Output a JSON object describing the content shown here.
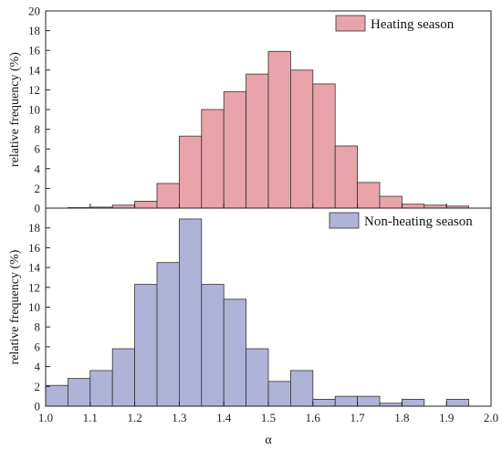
{
  "colors": {
    "heating_fill": "#E8A3AB",
    "nonheating_fill": "#B0B3D8",
    "bar_stroke": "#333333",
    "axis": "#222222"
  },
  "chart_data": {
    "type": "bar",
    "xlabel": "α",
    "xlim": [
      1.0,
      2.0
    ],
    "xticks": [
      "1.0",
      "1.1",
      "1.2",
      "1.3",
      "1.4",
      "1.5",
      "1.6",
      "1.7",
      "1.8",
      "1.9",
      "2.0"
    ],
    "bin_width": 0.05,
    "panels": [
      {
        "name": "Heating season",
        "ylabel": "relative frequency (%)",
        "ylim": [
          0,
          20
        ],
        "yticks": [
          "0",
          "2",
          "4",
          "6",
          "8",
          "10",
          "12",
          "14",
          "16",
          "18",
          "20"
        ],
        "legend_position": "top-right",
        "bins": [
          1.05,
          1.1,
          1.15,
          1.2,
          1.25,
          1.3,
          1.35,
          1.4,
          1.45,
          1.5,
          1.55,
          1.6,
          1.65,
          1.7,
          1.75,
          1.8,
          1.85,
          1.9
        ],
        "values": [
          0.05,
          0.1,
          0.3,
          0.7,
          2.5,
          7.3,
          10.0,
          11.8,
          13.6,
          15.9,
          14.0,
          12.6,
          6.3,
          2.6,
          1.2,
          0.4,
          0.3,
          0.2
        ]
      },
      {
        "name": "Non-heating season",
        "ylabel": "relative frequency (%)",
        "ylim": [
          0,
          20
        ],
        "yticks": [
          "0",
          "2",
          "4",
          "6",
          "8",
          "10",
          "12",
          "14",
          "16",
          "18"
        ],
        "legend_position": "top-right",
        "bins": [
          1.0,
          1.05,
          1.1,
          1.15,
          1.2,
          1.25,
          1.3,
          1.35,
          1.4,
          1.45,
          1.5,
          1.55,
          1.6,
          1.65,
          1.7,
          1.75,
          1.8,
          1.9
        ],
        "values": [
          2.1,
          2.8,
          3.6,
          5.8,
          12.3,
          14.5,
          18.9,
          12.3,
          10.8,
          5.8,
          2.5,
          3.6,
          0.7,
          1.0,
          1.0,
          0.3,
          0.7,
          0.7
        ]
      }
    ]
  }
}
